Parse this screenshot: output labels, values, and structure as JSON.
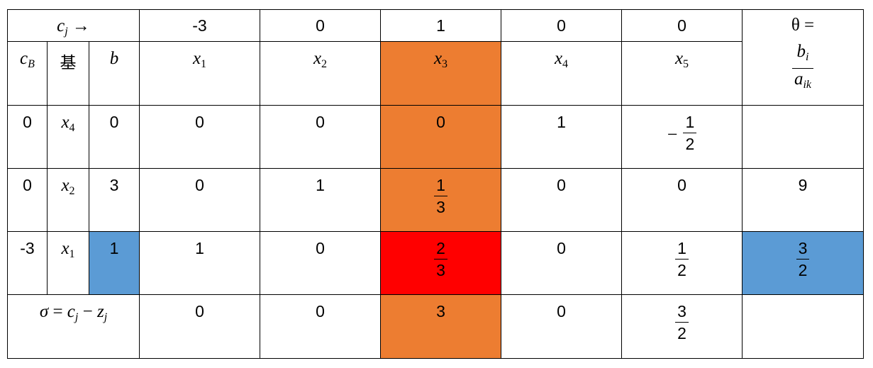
{
  "header": {
    "cj_label": "c",
    "cj_sub": "j",
    "cj_arrow": "→",
    "costs": [
      "-3",
      "0",
      "1",
      "0",
      "0"
    ],
    "theta_label": "θ =",
    "theta_num": "b",
    "theta_num_sub": "i",
    "theta_den": "a",
    "theta_den_sub": "ik"
  },
  "columns": {
    "cb": "c",
    "cb_sub": "B",
    "basis": "基",
    "b": "b",
    "x_vars": [
      {
        "name": "x",
        "sub": "1"
      },
      {
        "name": "x",
        "sub": "2"
      },
      {
        "name": "x",
        "sub": "3"
      },
      {
        "name": "x",
        "sub": "4"
      },
      {
        "name": "x",
        "sub": "5"
      }
    ]
  },
  "rows": [
    {
      "cb": "0",
      "basis_var": "x",
      "basis_sub": "4",
      "b": "0",
      "a1": "0",
      "a2": "0",
      "a3": "0",
      "a4": "1",
      "a5_sign": "−",
      "a5_num": "1",
      "a5_den": "2",
      "theta": ""
    },
    {
      "cb": "0",
      "basis_var": "x",
      "basis_sub": "2",
      "b": "3",
      "a1": "0",
      "a2": "1",
      "a3_num": "1",
      "a3_den": "3",
      "a4": "0",
      "a5": "0",
      "theta": "9"
    },
    {
      "cb": "-3",
      "basis_var": "x",
      "basis_sub": "1",
      "b": "1",
      "a1": "1",
      "a2": "0",
      "a3_num": "2",
      "a3_den": "3",
      "a4": "0",
      "a5_num": "1",
      "a5_den": "2",
      "theta_num": "3",
      "theta_den": "2"
    }
  ],
  "sigma": {
    "label_sigma": "σ",
    "label_eq": "=",
    "label_c": "c",
    "label_c_sub": "j",
    "label_minus": "−",
    "label_z": "z",
    "label_z_sub": "j",
    "values": [
      "0",
      "0",
      "3",
      "0"
    ],
    "x5_num": "3",
    "x5_den": "2"
  },
  "colors": {
    "pivot_column": "#ed7d31",
    "pivot_element": "#ff0000",
    "highlight": "#5b9bd5"
  }
}
